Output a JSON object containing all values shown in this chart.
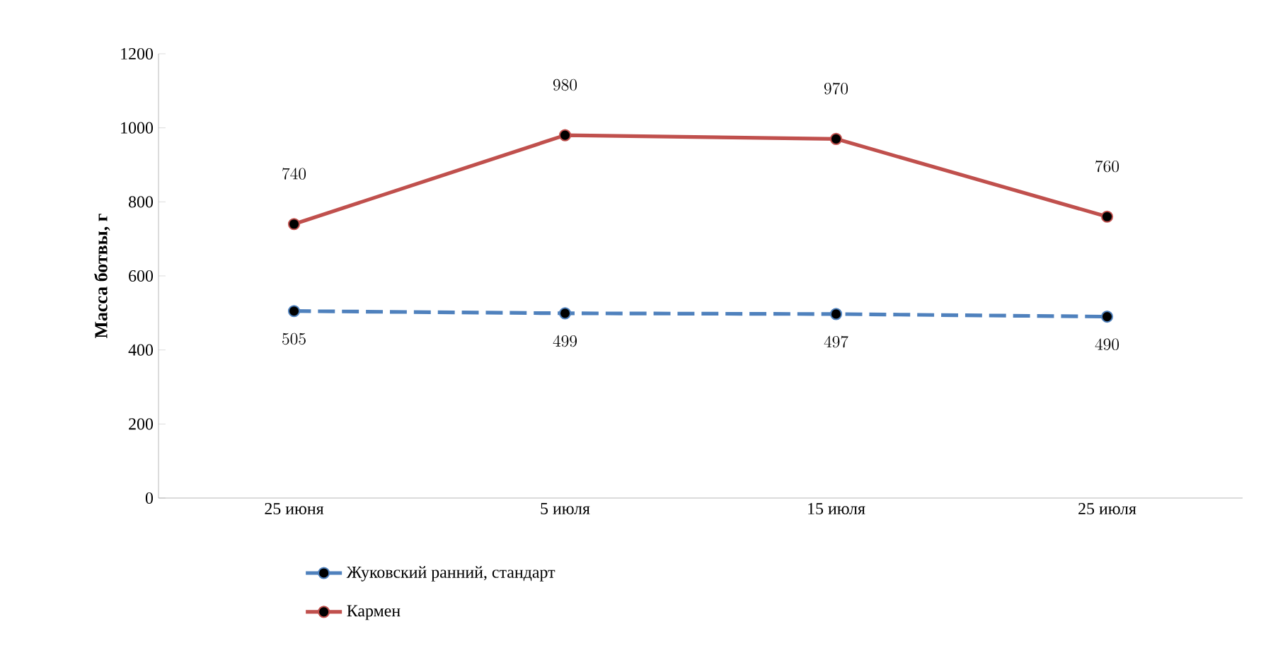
{
  "chart_data": {
    "type": "line",
    "ylabel": "Масса ботвы, г",
    "categories": [
      "25 июня",
      "5 июля",
      "15 июля",
      "25 июля"
    ],
    "series": [
      {
        "name": "Жуковский ранний, стандарт",
        "color": "#4f81bd",
        "line_style": "dashed",
        "values": [
          505,
          499,
          497,
          490
        ]
      },
      {
        "name": "Кармен",
        "color": "#c0504d",
        "line_style": "solid",
        "values": [
          740,
          980,
          970,
          760
        ]
      }
    ],
    "ylim": [
      0,
      1200
    ],
    "yticks": [
      0,
      200,
      400,
      600,
      800,
      1000,
      1200
    ],
    "marker": "circle",
    "data_labels": true,
    "legend": "bottom",
    "grid": false
  }
}
